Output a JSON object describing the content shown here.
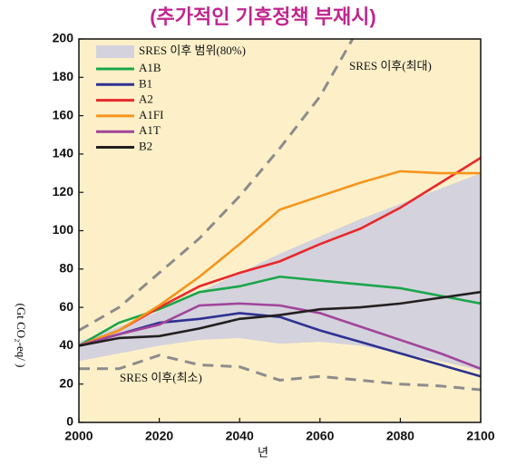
{
  "chart_data": {
    "type": "line",
    "title": "(추가적인 기후정책 부재시)",
    "xlabel": "년",
    "ylabel": "(Gt CO₂-eq/ )",
    "x": [
      2000,
      2010,
      2020,
      2030,
      2040,
      2050,
      2060,
      2070,
      2080,
      2090,
      2100
    ],
    "xlim": [
      2000,
      2100
    ],
    "xticks": [
      2000,
      2020,
      2040,
      2060,
      2080,
      2100
    ],
    "ylim": [
      0,
      200
    ],
    "yticks": [
      0,
      20,
      40,
      60,
      80,
      100,
      120,
      140,
      160,
      180,
      200
    ],
    "grid": false,
    "legend": "upper left",
    "background": "#fdf0c8",
    "band": {
      "name": "SRES 이후 범위(80%)",
      "color": "#d4d2dc",
      "upper": [
        42,
        50,
        58,
        68,
        78,
        88,
        97,
        106,
        114,
        122,
        130
      ],
      "lower": [
        32,
        36,
        40,
        43,
        44,
        41,
        42,
        40,
        36,
        32,
        27
      ]
    },
    "series": [
      {
        "name": "A1B",
        "color": "#1aa64a",
        "values": [
          40,
          52,
          59,
          68,
          71,
          76,
          74,
          72,
          70,
          66,
          62
        ]
      },
      {
        "name": "B1",
        "color": "#2e3192",
        "values": [
          40,
          46,
          52,
          54,
          57,
          55,
          48,
          42,
          36,
          30,
          24
        ]
      },
      {
        "name": "A2",
        "color": "#e8282b",
        "values": [
          40,
          48,
          60,
          71,
          78,
          84,
          93,
          101,
          112,
          125,
          138
        ]
      },
      {
        "name": "A1FI",
        "color": "#f7941d",
        "values": [
          40,
          48,
          61,
          76,
          93,
          111,
          118,
          125,
          131,
          130,
          130
        ]
      },
      {
        "name": "A1T",
        "color": "#a0449a",
        "values": [
          40,
          46,
          51,
          61,
          62,
          61,
          57,
          50,
          43,
          36,
          28
        ]
      },
      {
        "name": "B2",
        "color": "#231f20",
        "values": [
          40,
          44,
          45,
          49,
          54,
          56,
          59,
          60,
          62,
          65,
          68
        ]
      }
    ],
    "bounds": [
      {
        "label": "SRES 이후(최대)",
        "color": "#8c8c8c",
        "values": [
          48,
          60,
          78,
          96,
          118,
          143,
          170,
          207,
          null,
          null,
          null
        ]
      },
      {
        "label": "SRES 이후(최소)",
        "color": "#8c8c8c",
        "values": [
          28,
          28,
          35,
          30,
          29,
          22,
          24,
          22,
          20,
          19,
          17
        ]
      }
    ]
  }
}
